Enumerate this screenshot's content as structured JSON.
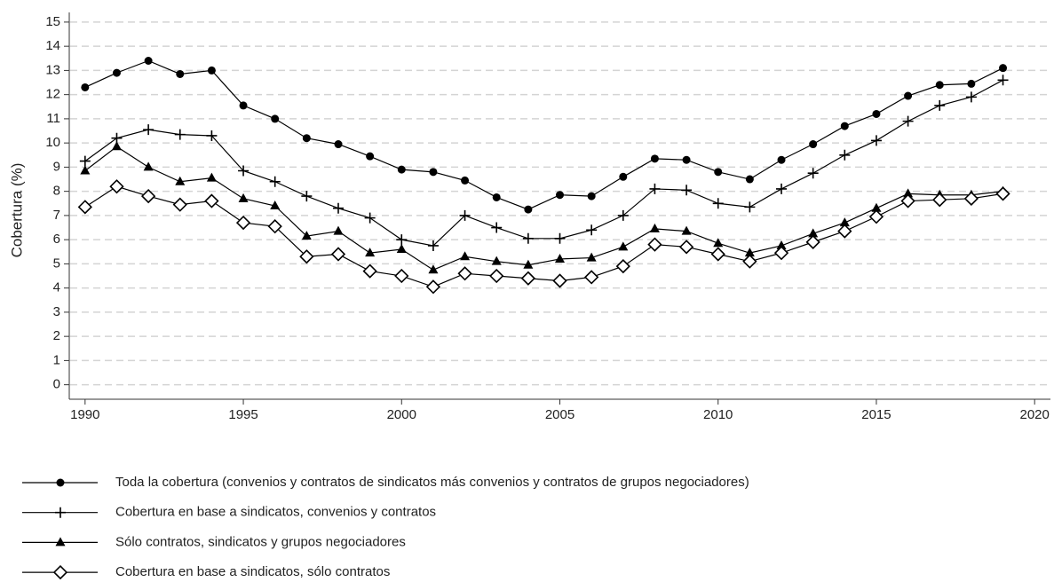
{
  "chart_data": {
    "type": "line",
    "y_label": "Cobertura (%)",
    "x": [
      1990,
      1991,
      1992,
      1993,
      1994,
      1995,
      1996,
      1997,
      1998,
      1999,
      2000,
      2001,
      2002,
      2003,
      2004,
      2005,
      2006,
      2007,
      2008,
      2009,
      2010,
      2011,
      2012,
      2013,
      2014,
      2015,
      2016,
      2017,
      2018,
      2019
    ],
    "xlim": [
      1989.5,
      2020.5
    ],
    "xticks": [
      1990,
      1995,
      2000,
      2005,
      2010,
      2015,
      2020
    ],
    "ylim": [
      -0.6,
      15.4
    ],
    "yticks": [
      0,
      1,
      2,
      3,
      4,
      5,
      6,
      7,
      8,
      9,
      10,
      11,
      12,
      13,
      14,
      15
    ],
    "grid": true,
    "legend": "bottom",
    "series": [
      {
        "name": "Toda la cobertura (convenios y contratos de sindicatos más convenios y contratos de grupos negociadores)",
        "color": "#000000",
        "marker": "circle",
        "values": [
          12.3,
          12.9,
          13.4,
          12.85,
          13.0,
          11.55,
          11.0,
          10.2,
          9.95,
          9.45,
          8.9,
          8.8,
          8.45,
          7.75,
          7.25,
          7.85,
          7.8,
          8.6,
          9.35,
          9.3,
          8.8,
          8.5,
          9.3,
          9.95,
          10.7,
          11.2,
          11.95,
          12.4,
          12.45,
          13.1
        ]
      },
      {
        "name": "Cobertura en base a sindicatos, convenios y contratos",
        "color": "#000000",
        "marker": "plus",
        "values": [
          9.25,
          10.2,
          10.55,
          10.35,
          10.3,
          8.85,
          8.4,
          7.8,
          7.3,
          6.9,
          6.0,
          5.75,
          7.0,
          6.5,
          6.05,
          6.05,
          6.4,
          7.0,
          8.1,
          8.05,
          7.5,
          7.35,
          8.1,
          8.75,
          9.5,
          10.1,
          10.9,
          11.55,
          11.9,
          12.6
        ]
      },
      {
        "name": "Sólo contratos, sindicatos y grupos negociadores",
        "color": "#000000",
        "marker": "triangle",
        "values": [
          8.85,
          9.85,
          9.0,
          8.4,
          8.55,
          7.7,
          7.4,
          6.15,
          6.35,
          5.45,
          5.6,
          4.75,
          5.3,
          5.1,
          4.95,
          5.2,
          5.25,
          5.7,
          6.45,
          6.35,
          5.85,
          5.45,
          5.75,
          6.25,
          6.7,
          7.3,
          7.9,
          7.85,
          7.85,
          8.0
        ]
      },
      {
        "name": "Cobertura en base a sindicatos, sólo contratos",
        "color": "#000000",
        "marker": "diamond",
        "values": [
          7.35,
          8.2,
          7.8,
          7.45,
          7.6,
          6.7,
          6.55,
          5.3,
          5.4,
          4.7,
          4.5,
          4.05,
          4.6,
          4.5,
          4.4,
          4.3,
          4.45,
          4.9,
          5.8,
          5.7,
          5.4,
          5.1,
          5.45,
          5.9,
          6.35,
          6.95,
          7.6,
          7.65,
          7.7,
          7.9
        ]
      }
    ]
  }
}
